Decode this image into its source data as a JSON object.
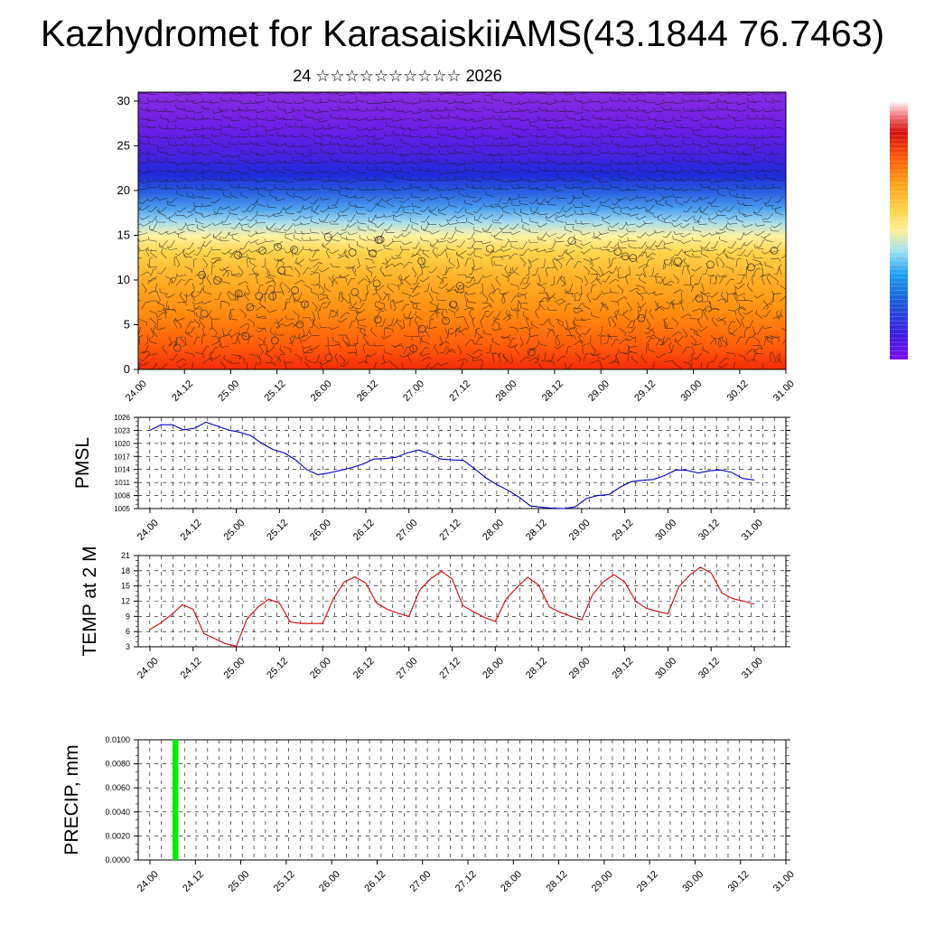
{
  "header": {
    "title": "Kazhydromet for KarasaiskiiAMS(43.1844 76.7463)",
    "subtitle": "24 ☆☆☆☆☆☆☆☆☆☆ 2026"
  },
  "colors": {
    "pmsl_line": "#0000cc",
    "temp_line": "#dd0000",
    "precip_bar": "#00ee00"
  },
  "chart_data": [
    {
      "type": "heatmap",
      "name": "wind-temperature-cross-section",
      "title": "",
      "xlabel": "",
      "ylabel": "",
      "ylim": [
        0,
        31
      ],
      "y_ticks": [
        "0",
        "5",
        "10",
        "15",
        "20",
        "25",
        "30"
      ],
      "x_tick_labels": [
        "24.00",
        "24.12",
        "25.00",
        "25.12",
        "26.00",
        "26.12",
        "27.00",
        "27.12",
        "28.00",
        "28.12",
        "29.00",
        "29.12",
        "30.00",
        "30.12",
        "31.00"
      ],
      "description_levels": {
        "warm_layer_top": 13,
        "cold_core_level": 21
      },
      "colorbar": [
        "#7a10e8",
        "#3c1fe0",
        "#1d4ad8",
        "#1e90ff",
        "#33c6f0",
        "#9fe0f0",
        "#fff09a",
        "#ffd24a",
        "#ffa21c",
        "#ff7a0a",
        "#ff4a0a",
        "#e61010",
        "#c60808",
        "#f07070",
        "#ffffff"
      ]
    },
    {
      "type": "line",
      "name": "pmsl",
      "ylabel": "PMSL",
      "ylim": [
        1005,
        1026
      ],
      "y_ticks": [
        "1005",
        "1008",
        "1011",
        "1014",
        "1017",
        "1020",
        "1023",
        "1026"
      ],
      "x_tick_labels": [
        "24.00",
        "24.12",
        "25.00",
        "25.12",
        "26.00",
        "26.12",
        "27.00",
        "27.12",
        "28.00",
        "28.12",
        "29.00",
        "29.12",
        "30.00",
        "30.12",
        "31.00"
      ],
      "series": [
        {
          "name": "PMSL",
          "values": [
            1023,
            1024.3,
            1024.3,
            1023.1,
            1023.5,
            1024.9,
            1024.0,
            1023.1,
            1022.6,
            1021.8,
            1020.0,
            1018.6,
            1017.8,
            1016.2,
            1014.0,
            1012.8,
            1013.2,
            1013.8,
            1014.4,
            1015.2,
            1016.4,
            1016.5,
            1016.8,
            1017.8,
            1018.5,
            1017.6,
            1016.4,
            1016.2,
            1016.1,
            1014.2,
            1012.1,
            1010.5,
            1009.2,
            1007.6,
            1005.6,
            1005.3,
            1005.1,
            1005.0,
            1005.4,
            1007.3,
            1008.0,
            1008.2,
            1009.9,
            1011.2,
            1011.5,
            1011.7,
            1012.6,
            1013.9,
            1013.8,
            1013.2,
            1013.7,
            1013.9,
            1013.3,
            1011.9,
            1011.6
          ]
        }
      ]
    },
    {
      "type": "line",
      "name": "temp-2m",
      "ylabel": "TEMP at 2 M",
      "ylim": [
        3,
        21
      ],
      "y_ticks": [
        "3",
        "6",
        "9",
        "12",
        "15",
        "18",
        "21"
      ],
      "x_tick_labels": [
        "24.00",
        "24.12",
        "25.00",
        "25.12",
        "26.00",
        "26.12",
        "27.00",
        "27.12",
        "28.00",
        "28.12",
        "29.00",
        "29.12",
        "30.00",
        "30.12",
        "31.00"
      ],
      "series": [
        {
          "name": "T2M",
          "values": [
            6.4,
            7.7,
            9.3,
            11.3,
            10.4,
            5.6,
            4.6,
            3.6,
            3.1,
            8.5,
            10.8,
            12.4,
            11.6,
            7.9,
            7.6,
            7.6,
            7.6,
            12.5,
            15.8,
            16.8,
            15.6,
            11.6,
            10.4,
            9.6,
            9.0,
            14.2,
            16.4,
            17.9,
            16.4,
            11.1,
            9.9,
            8.8,
            8.0,
            12.4,
            14.7,
            16.7,
            15.2,
            10.9,
            9.8,
            9.0,
            8.3,
            13.2,
            15.8,
            17.2,
            15.8,
            12.0,
            10.6,
            10.0,
            9.5,
            14.8,
            17.1,
            18.7,
            17.6,
            13.6,
            12.5,
            12.0,
            11.4
          ]
        }
      ]
    },
    {
      "type": "bar",
      "name": "precip",
      "ylabel": "PRECIP, mm",
      "ylim": [
        0,
        0.01
      ],
      "y_ticks": [
        "0.0000",
        "0.0020",
        "0.0040",
        "0.0060",
        "0.0080",
        "0.0100"
      ],
      "x_tick_labels": [
        "24.00",
        "24.12",
        "25.00",
        "25.12",
        "26.00",
        "26.12",
        "27.00",
        "27.12",
        "28.00",
        "28.12",
        "29.00",
        "29.12",
        "30.00",
        "30.12",
        "31.00"
      ],
      "bars": [
        {
          "start_hour": 6,
          "end_hour": 7.5,
          "value": 0.01
        }
      ]
    }
  ]
}
